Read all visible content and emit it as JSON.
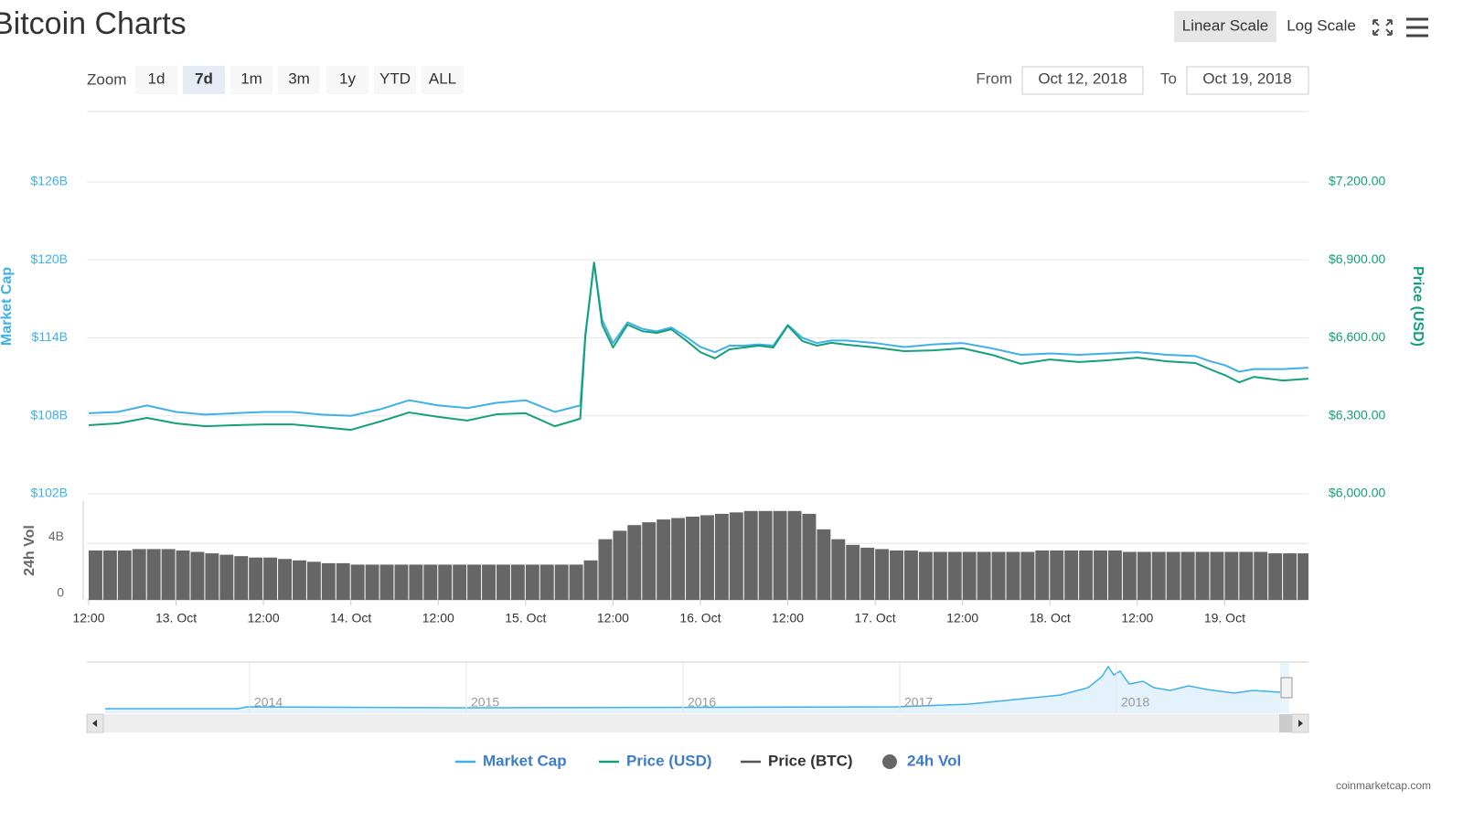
{
  "header": {
    "title": "Bitcoin Charts",
    "scale_buttons": [
      "Linear Scale",
      "Log Scale"
    ],
    "active_scale": 0
  },
  "zoom": {
    "label": "Zoom",
    "buttons": [
      "1d",
      "7d",
      "1m",
      "3m",
      "1y",
      "YTD",
      "ALL"
    ],
    "active": 1
  },
  "range": {
    "from_label": "From",
    "from": "Oct 12, 2018",
    "to_label": "To",
    "to": "Oct 19, 2018"
  },
  "chart_data": {
    "type": "line",
    "xlim": [
      11.75,
      179.5
    ],
    "xticks": [
      {
        "value": 12,
        "label": "12:00"
      },
      {
        "value": 24,
        "label": "13. Oct"
      },
      {
        "value": 36,
        "label": "12:00"
      },
      {
        "value": 48,
        "label": "14. Oct"
      },
      {
        "value": 60,
        "label": "12:00"
      },
      {
        "value": 72,
        "label": "15. Oct"
      },
      {
        "value": 84,
        "label": "12:00"
      },
      {
        "value": 96,
        "label": "16. Oct"
      },
      {
        "value": 108,
        "label": "12:00"
      },
      {
        "value": 120,
        "label": "17. Oct"
      },
      {
        "value": 132,
        "label": "12:00"
      },
      {
        "value": 144,
        "label": "18. Oct"
      },
      {
        "value": 156,
        "label": "12:00"
      },
      {
        "value": 168,
        "label": "19. Oct"
      }
    ],
    "ylabel": "Market Cap",
    "ylim": [
      102,
      126
    ],
    "yticks": [
      {
        "value": 102,
        "label": "$102B"
      },
      {
        "value": 108,
        "label": "$108B"
      },
      {
        "value": 114,
        "label": "$114B"
      },
      {
        "value": 120,
        "label": "$120B"
      },
      {
        "value": 126,
        "label": "$126B"
      }
    ],
    "y2label": "Price (USD)",
    "y2lim": [
      6000,
      7200
    ],
    "y2ticks": [
      {
        "value": 6000,
        "label": "$6,000.00"
      },
      {
        "value": 6300,
        "label": "$6,300.00"
      },
      {
        "value": 6600,
        "label": "$6,600.00"
      },
      {
        "value": 6900,
        "label": "$6,900.00"
      },
      {
        "value": 7200,
        "label": "$7,200.00"
      }
    ],
    "vol_label": "24h Vol",
    "vol_ylim": [
      0,
      7
    ],
    "vol_yticks": [
      0,
      {
        "value": 4,
        "label": "4B"
      }
    ],
    "grid": true,
    "x": [
      12,
      16,
      20,
      24,
      28,
      32,
      36,
      40,
      44,
      48,
      52,
      56,
      60,
      64,
      68,
      72,
      76,
      79.5,
      80.2,
      81.4,
      82.5,
      84,
      86,
      88,
      90,
      92,
      94,
      96,
      98,
      100,
      102,
      104,
      106,
      108,
      110,
      112,
      114,
      116,
      120,
      124,
      128,
      132,
      136,
      140,
      144,
      148,
      152,
      156,
      160,
      164,
      166,
      168,
      170,
      172,
      176,
      179.5
    ],
    "series": [
      {
        "name": "Market Cap",
        "color": "#3fb0e8",
        "axis": "y",
        "type": "line",
        "values": [
          108.2,
          108.3,
          108.8,
          108.3,
          108.1,
          108.2,
          108.3,
          108.3,
          108.1,
          108.0,
          108.5,
          109.2,
          108.8,
          108.6,
          109.0,
          109.2,
          108.3,
          108.8,
          114.3,
          119.8,
          115.4,
          113.6,
          115.2,
          114.7,
          114.5,
          114.8,
          114.1,
          113.3,
          112.9,
          113.4,
          113.4,
          113.5,
          113.4,
          115.0,
          114.0,
          113.6,
          113.8,
          113.8,
          113.6,
          113.3,
          113.5,
          113.6,
          113.2,
          112.7,
          112.8,
          112.7,
          112.8,
          112.9,
          112.7,
          112.6,
          112.2,
          111.9,
          111.4,
          111.6,
          111.6,
          111.7
        ]
      },
      {
        "name": "Price (USD)",
        "color": "#14a07a",
        "axis": "y2",
        "type": "line",
        "values": [
          6264,
          6271,
          6292,
          6271,
          6260,
          6264,
          6267,
          6267,
          6257,
          6246,
          6278,
          6313,
          6296,
          6282,
          6306,
          6310,
          6260,
          6289,
          6605,
          6890,
          6651,
          6563,
          6651,
          6626,
          6619,
          6633,
          6591,
          6545,
          6521,
          6556,
          6563,
          6570,
          6563,
          6647,
          6588,
          6570,
          6581,
          6574,
          6563,
          6549,
          6552,
          6560,
          6535,
          6500,
          6517,
          6507,
          6514,
          6524,
          6510,
          6503,
          6479,
          6457,
          6429,
          6450,
          6436,
          6443
        ]
      },
      {
        "name": "Price (BTC)",
        "color": "#555555",
        "type": "line"
      },
      {
        "name": "24h Vol",
        "color": "#666666",
        "axis": "vol",
        "type": "bar",
        "x": [
          12,
          14,
          16,
          18,
          20,
          22,
          24,
          26,
          28,
          30,
          32,
          34,
          36,
          38,
          40,
          42,
          44,
          46,
          48,
          50,
          52,
          54,
          56,
          58,
          60,
          62,
          64,
          66,
          68,
          70,
          72,
          74,
          76,
          78,
          80,
          82,
          84,
          86,
          88,
          90,
          92,
          94,
          96,
          98,
          100,
          102,
          104,
          106,
          108,
          110,
          112,
          114,
          116,
          118,
          120,
          122,
          124,
          126,
          128,
          130,
          132,
          134,
          136,
          138,
          140,
          142,
          144,
          146,
          148,
          150,
          152,
          154,
          156,
          158,
          160,
          162,
          164,
          166,
          168,
          170,
          172,
          174,
          176,
          178
        ],
        "values": [
          3.5,
          3.5,
          3.5,
          3.6,
          3.6,
          3.6,
          3.5,
          3.4,
          3.3,
          3.2,
          3.1,
          3.0,
          3.0,
          2.9,
          2.8,
          2.7,
          2.6,
          2.6,
          2.5,
          2.5,
          2.5,
          2.5,
          2.5,
          2.5,
          2.5,
          2.5,
          2.5,
          2.5,
          2.5,
          2.5,
          2.5,
          2.5,
          2.5,
          2.5,
          2.8,
          4.3,
          4.9,
          5.3,
          5.5,
          5.7,
          5.8,
          5.9,
          6.0,
          6.1,
          6.2,
          6.3,
          6.3,
          6.3,
          6.3,
          6.1,
          5.0,
          4.3,
          3.9,
          3.7,
          3.6,
          3.5,
          3.5,
          3.4,
          3.4,
          3.4,
          3.4,
          3.4,
          3.4,
          3.4,
          3.4,
          3.5,
          3.5,
          3.5,
          3.5,
          3.5,
          3.5,
          3.4,
          3.4,
          3.4,
          3.4,
          3.4,
          3.4,
          3.4,
          3.4,
          3.4,
          3.4,
          3.3,
          3.3,
          3.3
        ]
      }
    ]
  },
  "navigator": {
    "labels": [
      "2014",
      "2015",
      "2016",
      "2017",
      "2018"
    ]
  },
  "credit": "coinmarketcap.com"
}
